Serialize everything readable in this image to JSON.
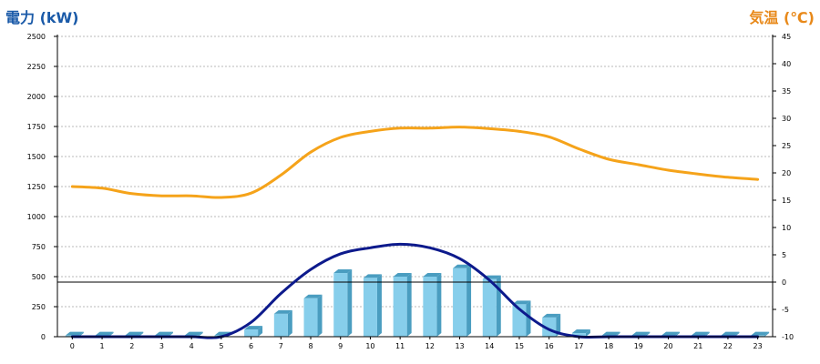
{
  "chart_data": {
    "type": "bar",
    "title_left": "電力 (kW)",
    "title_right": "気温 (℃)",
    "categories": [
      "0",
      "1",
      "2",
      "3",
      "4",
      "5",
      "6",
      "7",
      "8",
      "9",
      "10",
      "11",
      "12",
      "13",
      "14",
      "15",
      "16",
      "17",
      "18",
      "19",
      "20",
      "21",
      "22",
      "23"
    ],
    "y_left": {
      "range": [
        0,
        2500
      ],
      "ticks": [
        "0",
        "250",
        "500",
        "750",
        "1000",
        "1250",
        "1500",
        "1750",
        "2000",
        "2250",
        "2500"
      ]
    },
    "y_right": {
      "range": [
        -10,
        45
      ],
      "ticks": [
        "-10",
        "-5",
        "0",
        "5",
        "10",
        "15",
        "20",
        "25",
        "30",
        "35",
        "40",
        "45"
      ]
    },
    "grid": true,
    "series": [
      {
        "kind": "bar",
        "axis": "left",
        "values": [
          10,
          10,
          10,
          10,
          10,
          10,
          60,
          190,
          320,
          530,
          490,
          500,
          500,
          570,
          480,
          270,
          160,
          30,
          10,
          10,
          10,
          10,
          10,
          10
        ],
        "color": "#87ceeb",
        "side_color": "#4a9dc0"
      },
      {
        "kind": "line",
        "axis": "left",
        "values": [
          0,
          0,
          0,
          0,
          0,
          0,
          120,
          360,
          560,
          690,
          740,
          770,
          740,
          650,
          470,
          230,
          60,
          0,
          0,
          0,
          0,
          0,
          0,
          0
        ],
        "color": "#0d1a8c"
      },
      {
        "kind": "line",
        "axis": "right",
        "values": [
          17.5,
          17.2,
          16.2,
          15.8,
          15.8,
          15.5,
          16.3,
          19.6,
          23.8,
          26.5,
          27.6,
          28.2,
          28.2,
          28.4,
          28.1,
          27.6,
          26.6,
          24.4,
          22.5,
          21.5,
          20.5,
          19.8,
          19.2,
          18.8
        ],
        "color": "#f5a31a"
      }
    ],
    "reference_line": {
      "axis": "right",
      "value": 0,
      "color": "#000000"
    }
  }
}
